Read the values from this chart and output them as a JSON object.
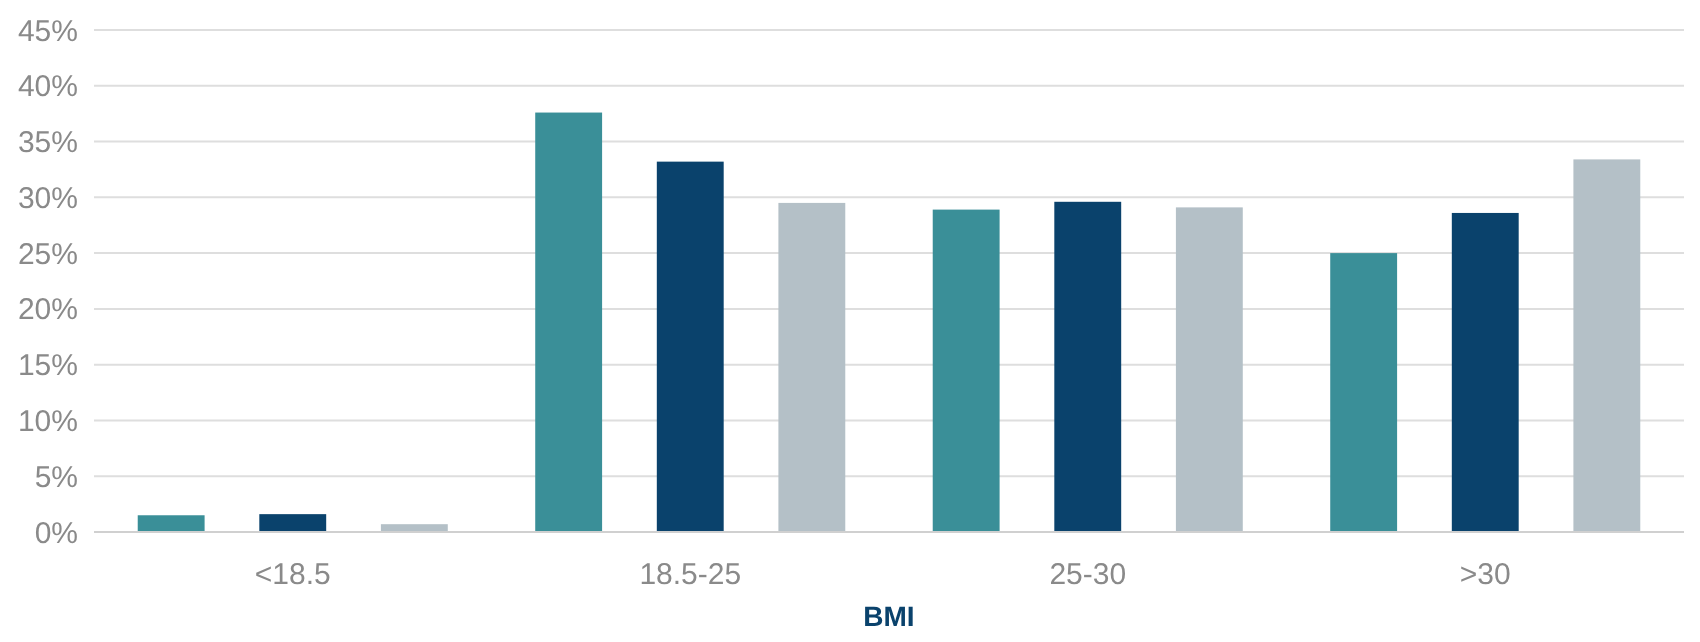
{
  "chart_data": {
    "type": "bar",
    "xlabel": "BMI",
    "categories": [
      "<18.5",
      "18.5-25",
      "25-30",
      ">30"
    ],
    "series": [
      {
        "color": "#3a8f98",
        "values": [
          1.5,
          37.6,
          28.9,
          25.0
        ]
      },
      {
        "color": "#0a426c",
        "values": [
          1.6,
          33.2,
          29.6,
          28.6
        ]
      },
      {
        "color": "#b4c0c7",
        "values": [
          0.7,
          29.5,
          29.1,
          33.4
        ]
      }
    ],
    "ylim": [
      0,
      45
    ],
    "yticks": [
      {
        "value": 0,
        "label": "0%"
      },
      {
        "value": 5,
        "label": "5%"
      },
      {
        "value": 10,
        "label": "10%"
      },
      {
        "value": 15,
        "label": "15%"
      },
      {
        "value": 20,
        "label": "20%"
      },
      {
        "value": 25,
        "label": "25%"
      },
      {
        "value": 30,
        "label": "30%"
      },
      {
        "value": 35,
        "label": "35%"
      },
      {
        "value": 40,
        "label": "40%"
      },
      {
        "value": 45,
        "label": "45%"
      }
    ],
    "grid": "y"
  }
}
